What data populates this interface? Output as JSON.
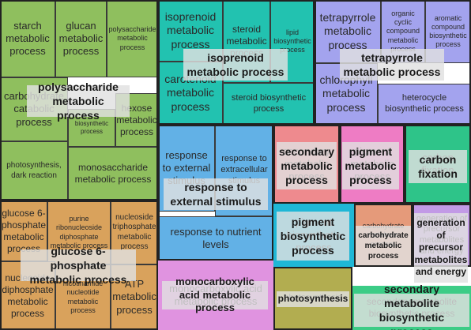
{
  "chart_data": {
    "type": "treemap",
    "title": "",
    "groups": [
      {
        "name": "polysaccharide metabolic process",
        "color": "#8fbf5e",
        "terms": [
          "starch metabolic process",
          "glucan metabolic process",
          "polysaccharide metabolic process",
          "carbohydrate catabolic process",
          "biosynthetic process",
          "hexose metabolic process",
          "photosynthesis, dark reaction",
          "monosaccharide metabolic process"
        ]
      },
      {
        "name": "isoprenoid metabolic process",
        "color": "#22c2b0",
        "terms": [
          "isoprenoid metabolic process",
          "steroid metabolic process",
          "lipid biosynthetic process",
          "carotenoid metabolic process",
          "steroid biosynthetic process"
        ]
      },
      {
        "name": "tetrapyrrole metabolic process",
        "color": "#a3a3ee",
        "terms": [
          "tetrapyrrole metabolic process",
          "organic cyclic compound metabolic process",
          "aromatic compound biosynthetic process",
          "chlorophyll metabolic process",
          "heterocycle biosynthetic process"
        ]
      },
      {
        "name": "response to external stimulus",
        "color": "#62b1e6",
        "terms": [
          "response to external stimulus",
          "response to extracellular stimulus",
          "response to nutrient levels"
        ]
      },
      {
        "name": "secondary metabolic process",
        "color": "#ee8a8e",
        "terms": [
          "secondary metabolic process"
        ]
      },
      {
        "name": "pigment metabolic process",
        "color": "#ee7cc4",
        "terms": [
          "pigment metabolic process"
        ]
      },
      {
        "name": "carbon fixation",
        "color": "#2ec489",
        "terms": [
          "carbon fixation"
        ]
      },
      {
        "name": "glucose 6-phosphate metabolic process",
        "color": "#d9a25c",
        "terms": [
          "glucose 6-phosphate metabolic process",
          "purine ribonucleoside diphosphate metabolic process",
          "nucleoside triphosphate metabolic process",
          "nucleoside diphosphate metabolic process",
          "nicotinamide nucleotide metabolic process",
          "ATP metabolic process"
        ]
      },
      {
        "name": "pigment biosynthetic process",
        "color": "#1fb7d6",
        "terms": [
          "pigment biosynthetic process"
        ]
      },
      {
        "name": "carbohydrate metabolic process",
        "color": "#e59a7a",
        "terms": [
          "carbohydrate metabolic process"
        ]
      },
      {
        "name": "generation of precursor metabolites and energy",
        "color": "#c29ae6",
        "terms": [
          "generation of precursor metabolites and energy"
        ]
      },
      {
        "name": "monocarboxylic acid metabolic process",
        "color": "#e093e0",
        "terms": [
          "monocarboxylic acid metabolic process"
        ]
      },
      {
        "name": "photosynthesis",
        "color": "#b2ad50",
        "terms": [
          "photosynthesis"
        ]
      },
      {
        "name": "secondary metabolite biosynthetic process",
        "color": "#3ccc86",
        "terms": [
          "secondary metabolite biosynthetic process"
        ]
      }
    ],
    "group_labels": [
      "polysaccharide metabolic process",
      "isoprenoid metabolic process",
      "tetrapyrrole metabolic process",
      "response to external stimulus",
      "secondary metabolic process",
      "pigment metabolic process",
      "carbon fixation",
      "glucose 6-phosphate metabolic process",
      "pigment biosynthetic process",
      "carbohydrate metabolic process",
      "generation of precursor metabolites and energy",
      "monocarboxylic acid metabolic process",
      "photosynthesis",
      "secondary metabolite biosynthetic process"
    ]
  }
}
